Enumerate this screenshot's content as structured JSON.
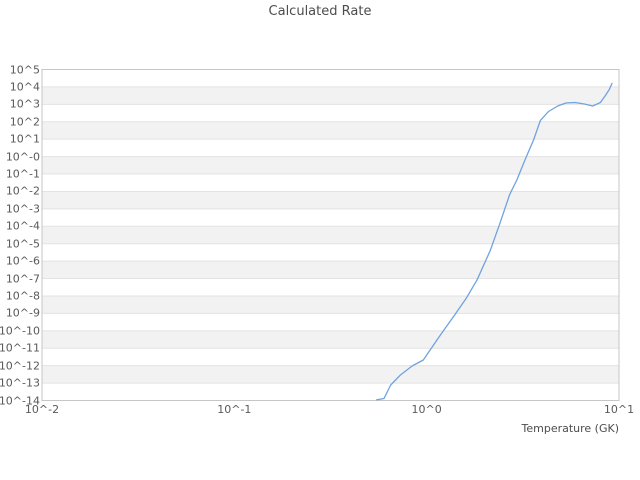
{
  "header": {
    "title": "Calculated Rate"
  },
  "colors": {
    "background": "#ffffff",
    "band_gray": "#f2f2f2",
    "gridline": "#e3e3e3",
    "frame": "#c6c6c6",
    "text": "#595959",
    "line": "#6fa3e0"
  },
  "chart_data": {
    "type": "line",
    "title": "Calculated Rate",
    "xlabel": "Temperature (GK)",
    "ylabel": "",
    "xscale": "log",
    "yscale": "log",
    "xlim": [
      0.01,
      10
    ],
    "ylim": [
      1e-14,
      100000.0
    ],
    "grid": "horizontal-bands-alternating",
    "legend": "none",
    "xtick_values": [
      0.01,
      0.1,
      1,
      10
    ],
    "xtick_labels": [
      "10^-2",
      "10^-1",
      "10^0",
      "10^1"
    ],
    "ytick_exponents": [
      5,
      4,
      3,
      2,
      1,
      0,
      -1,
      -2,
      -3,
      -4,
      -5,
      -6,
      -7,
      -8,
      -9,
      -10,
      -11,
      -12,
      -13,
      -14
    ],
    "ytick_labels": [
      "10^5",
      "10^4",
      "10^3",
      "10^2",
      "10^1",
      "10^-0",
      "10^-1",
      "10^-2",
      "10^-3",
      "10^-4",
      "10^-5",
      "10^-6",
      "10^-7",
      "10^-8",
      "10^-9",
      "10^-10",
      "10^-11",
      "10^-12",
      "10^-13",
      "10^-14"
    ],
    "series": [
      {
        "name": "calculated-rate",
        "color": "#6fa3e0",
        "x": [
          0.55,
          0.6,
          0.65,
          0.73,
          0.84,
          0.96,
          1.17,
          1.4,
          1.6,
          1.83,
          2.14,
          2.4,
          2.7,
          2.95,
          3.25,
          3.6,
          3.9,
          4.3,
          4.8,
          5.3,
          5.9,
          6.6,
          7.3,
          8.0,
          8.5,
          8.9,
          9.2
        ],
        "y": [
          1.1e-14,
          1.3e-14,
          7.8e-14,
          2.9e-13,
          9.6e-13,
          2.1e-12,
          5.1e-11,
          8.3e-10,
          6.9e-09,
          8.5e-08,
          4e-06,
          0.00014,
          0.0065,
          0.048,
          0.67,
          9.5,
          117,
          390,
          800,
          1190,
          1270,
          1040,
          800,
          1270,
          3200,
          7100,
          16000.0
        ]
      }
    ]
  }
}
